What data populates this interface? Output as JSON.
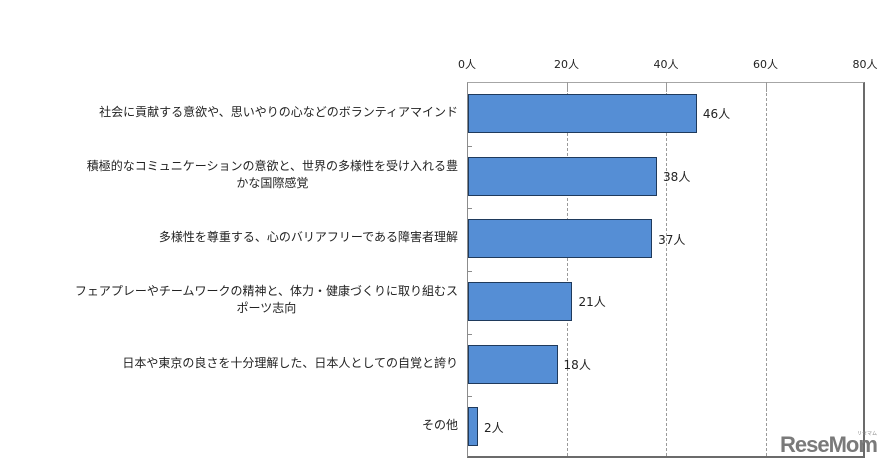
{
  "chart_data": {
    "type": "bar",
    "orientation": "horizontal",
    "title": "",
    "xlabel": "",
    "ylabel": "",
    "xlim": [
      0,
      80
    ],
    "x_ticks": [
      "0人",
      "20人",
      "40人",
      "60人",
      "80人"
    ],
    "x_tick_values": [
      0,
      20,
      40,
      60,
      80
    ],
    "grid": "vertical dashed",
    "legend": "none",
    "bar_color": "#558ed5",
    "categories": [
      "社会に貢献する意欲や、思いやりの心などのボランティアマインド",
      "積極的なコミュニケーションの意欲と、世界の多様性を受け入れる豊かな国際感覚",
      "多様性を尊重する、心のバリアフリーである障害者理解",
      "フェアプレーやチームワークの精神と、体力・健康づくりに取り組むスポーツ志向",
      "日本や東京の良さを十分理解した、日本人としての自覚と誇り",
      "その他"
    ],
    "category_lines": [
      [
        "社会に貢献する意欲や、思いやりの心などのボランティアマインド"
      ],
      [
        "積極的なコミュニケーションの意欲と、世界の多様性を受け入れる豊",
        "かな国際感覚"
      ],
      [
        "多様性を尊重する、心のバリアフリーである障害者理解"
      ],
      [
        "フェアプレーやチームワークの精神と、体力・健康づくりに取り組むス",
        "ポーツ志向"
      ],
      [
        "日本や東京の良さを十分理解した、日本人としての自覚と誇り"
      ],
      [
        "その他"
      ]
    ],
    "values": [
      46,
      38,
      37,
      21,
      18,
      2
    ],
    "value_labels": [
      "46人",
      "38人",
      "37人",
      "21人",
      "18人",
      "2人"
    ],
    "unit": "人"
  },
  "watermark": {
    "text": "ReseMom",
    "sub": "リセマム"
  }
}
